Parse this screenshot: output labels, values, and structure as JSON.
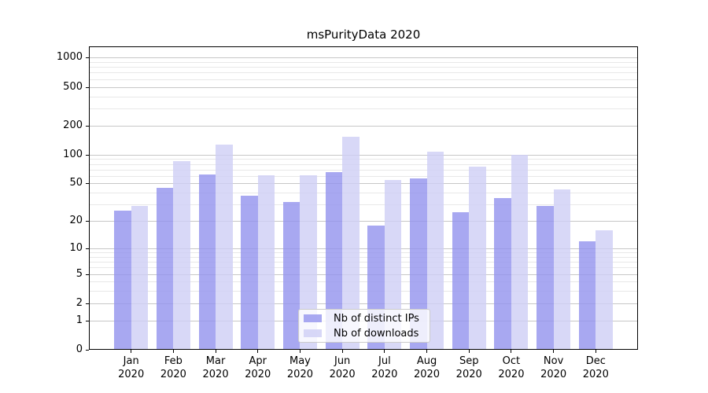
{
  "chart": {
    "background": "#ffffff",
    "axis_color": "#000000",
    "grid_major_color": "#c7c7c7",
    "grid_minor_color": "#e8e8e8",
    "bar_opacity": 0.8
  },
  "chart_data": {
    "type": "bar",
    "title": "msPurityData 2020",
    "categories": [
      "Jan 2020",
      "Feb 2020",
      "Mar 2020",
      "Apr 2020",
      "May 2020",
      "Jun 2020",
      "Jul 2020",
      "Aug 2020",
      "Sep 2020",
      "Oct 2020",
      "Nov 2020",
      "Dec 2020"
    ],
    "series": [
      {
        "name": "Nb of distinct IPs",
        "color": "#9292ee",
        "values": [
          26,
          45,
          62,
          37,
          32,
          66,
          18,
          57,
          25,
          35,
          29,
          12
        ]
      },
      {
        "name": "Nb of downloads",
        "color": "#cecef5",
        "values": [
          29,
          86,
          126,
          61,
          61,
          152,
          54,
          108,
          75,
          100,
          43,
          16
        ]
      }
    ],
    "xlabel": "",
    "ylabel": "",
    "y_scale": "log1p",
    "y_ticks": [
      0,
      1,
      2,
      5,
      10,
      20,
      50,
      100,
      200,
      500,
      1000
    ],
    "y_minor_ticks": [
      3,
      4,
      6,
      7,
      8,
      9,
      30,
      40,
      60,
      70,
      80,
      90,
      300,
      400,
      600,
      700,
      800,
      900
    ],
    "ylim": [
      0,
      1000
    ],
    "grid": true,
    "legend_position": "inside-bottom-center"
  }
}
